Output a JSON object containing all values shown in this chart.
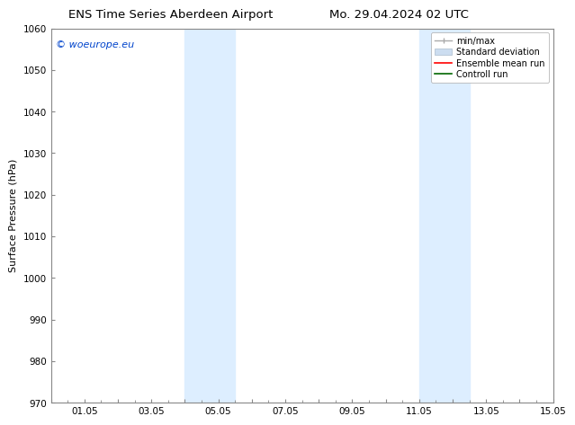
{
  "title_left": "ENS Time Series Aberdeen Airport",
  "title_right": "Mo. 29.04.2024 02 UTC",
  "ylabel": "Surface Pressure (hPa)",
  "xlim": [
    0.0,
    15.0
  ],
  "ylim": [
    970,
    1060
  ],
  "yticks": [
    970,
    980,
    990,
    1000,
    1010,
    1020,
    1030,
    1040,
    1050,
    1060
  ],
  "xtick_labels": [
    "",
    "01.05",
    "",
    "03.05",
    "",
    "05.05",
    "",
    "07.05",
    "",
    "09.05",
    "",
    "11.05",
    "",
    "13.05",
    "",
    "15.05"
  ],
  "xtick_positions": [
    0.0,
    1.0,
    2.0,
    3.0,
    4.0,
    5.0,
    6.0,
    7.0,
    8.0,
    9.0,
    10.0,
    11.0,
    12.0,
    13.0,
    14.0,
    15.0
  ],
  "shaded_bands": [
    {
      "xmin": 4.0,
      "xmax": 5.5,
      "color": "#ddeeff"
    },
    {
      "xmin": 11.0,
      "xmax": 12.5,
      "color": "#ddeeff"
    }
  ],
  "watermark_text": "© woeurope.eu",
  "watermark_color": "#0044cc",
  "legend_entries": [
    {
      "label": "min/max"
    },
    {
      "label": "Standard deviation"
    },
    {
      "label": "Ensemble mean run"
    },
    {
      "label": "Controll run"
    }
  ],
  "bg_color": "#ffffff",
  "grid_color": "#dddddd",
  "title_fontsize": 9.5,
  "axis_fontsize": 8,
  "tick_fontsize": 7.5,
  "watermark_fontsize": 8
}
